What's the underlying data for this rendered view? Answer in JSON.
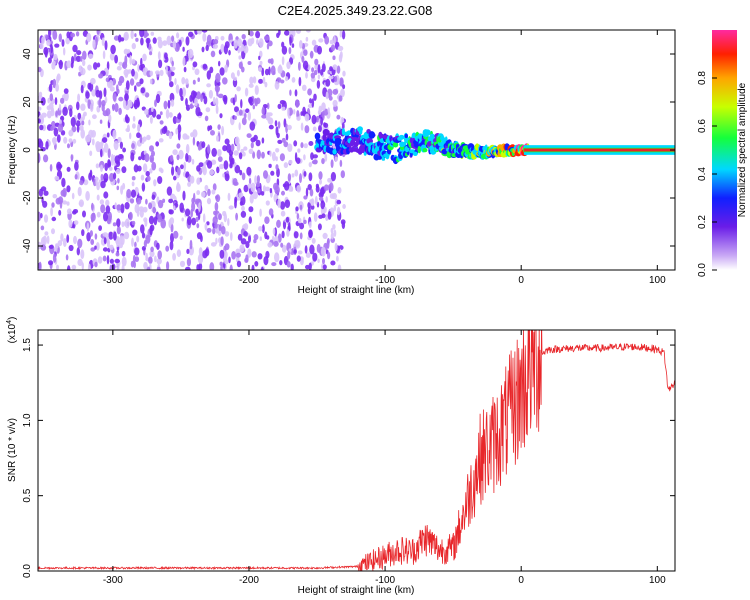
{
  "title": "C2E4.2025.349.23.22.G08",
  "colors": {
    "snr_line": "#e8262a",
    "signal_band": "#e8262a",
    "speckle": "#7b2cf0"
  },
  "chart_data": [
    {
      "type": "heatmap",
      "name": "spectrogram",
      "xlabel": "Height of straight line (km)",
      "ylabel": "Frequency (Hz)",
      "xlim": [
        -355,
        113
      ],
      "ylim": [
        -50,
        50
      ],
      "xticks": [
        -300,
        -200,
        -100,
        0,
        100
      ],
      "yticks": [
        -40,
        -20,
        0,
        20,
        40
      ],
      "noise_region": {
        "x": [
          -355,
          -130
        ],
        "level": "scattered speckle, amplitude ~0.1-0.2"
      },
      "signal_band": [
        {
          "x": -150,
          "y": 3,
          "width_hz": 8,
          "amplitude": 0.35
        },
        {
          "x": -120,
          "y": 4,
          "width_hz": 10,
          "amplitude": 0.4
        },
        {
          "x": -95,
          "y": 0,
          "width_hz": 10,
          "amplitude": 0.45
        },
        {
          "x": -70,
          "y": 4,
          "width_hz": 8,
          "amplitude": 0.5
        },
        {
          "x": -50,
          "y": 0,
          "width_hz": 6,
          "amplitude": 0.55
        },
        {
          "x": -30,
          "y": -1,
          "width_hz": 4,
          "amplitude": 0.6
        },
        {
          "x": -10,
          "y": 0,
          "width_hz": 3,
          "amplitude": 0.75
        },
        {
          "x": 10,
          "y": 0,
          "width_hz": 3,
          "amplitude": 1.0
        },
        {
          "x": 113,
          "y": 0,
          "width_hz": 3,
          "amplitude": 1.0
        }
      ],
      "colorbar": {
        "label": "Normalized spectral amplitude",
        "range": [
          0.0,
          1.0
        ],
        "ticks": [
          "0.0",
          "0.2",
          "0.4",
          "0.6",
          "0.8"
        ]
      }
    },
    {
      "type": "line",
      "name": "snr",
      "xlabel": "Height of straight line (km)",
      "ylabel": "SNR (10 * v/v)",
      "multiplier_label": "(x10",
      "multiplier_exp": "4",
      "xlim": [
        -355,
        113
      ],
      "ylim": [
        0.0,
        1.6
      ],
      "xticks": [
        -300,
        -200,
        -100,
        0,
        100
      ],
      "yticks": [
        "0.0",
        "0.5",
        "1.0",
        "1.5"
      ],
      "series": [
        {
          "name": "SNR",
          "x": [
            -355,
            -300,
            -250,
            -200,
            -150,
            -120,
            -100,
            -90,
            -80,
            -70,
            -60,
            -50,
            -40,
            -30,
            -20,
            -10,
            0,
            10,
            20,
            40,
            60,
            80,
            95,
            100,
            105,
            108,
            113
          ],
          "y": [
            0.02,
            0.02,
            0.02,
            0.02,
            0.02,
            0.03,
            0.1,
            0.14,
            0.13,
            0.22,
            0.14,
            0.15,
            0.45,
            0.75,
            0.85,
            1.0,
            1.2,
            1.42,
            1.47,
            1.48,
            1.48,
            1.49,
            1.48,
            1.47,
            1.45,
            1.2,
            1.25
          ]
        }
      ]
    }
  ]
}
